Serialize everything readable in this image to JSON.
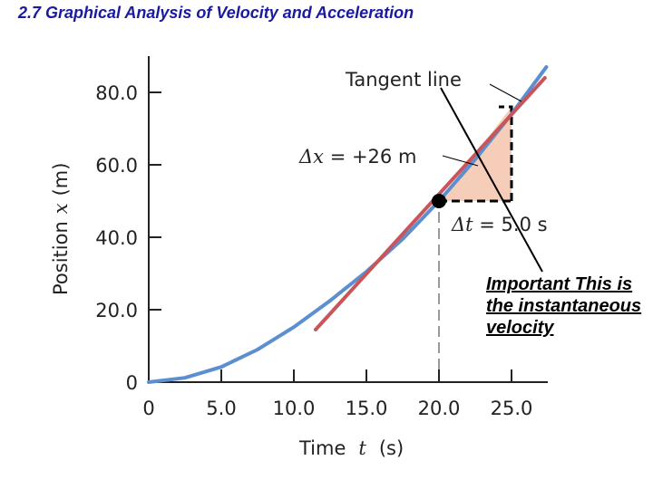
{
  "slide": {
    "title": "2.7 Graphical Analysis of Velocity and Acceleration",
    "title_color": "#1a1aa0",
    "note": "Important This is the instantaneous velocity"
  },
  "chart_data": {
    "type": "line",
    "x_ticks": [
      0,
      5,
      10,
      15,
      20,
      25
    ],
    "x_tick_labels": [
      "0",
      "5.0",
      "10.0",
      "15.0",
      "20.0",
      "25.0"
    ],
    "y_ticks": [
      0,
      20,
      40,
      60,
      80
    ],
    "y_tick_labels": [
      "0",
      "20.0",
      "40.0",
      "60.0",
      "80.0"
    ],
    "xlim": [
      0,
      27.5
    ],
    "ylim": [
      0,
      90
    ],
    "xlabel_prefix": "Time",
    "xlabel_var": "t",
    "xlabel_unit": "(s)",
    "ylabel_prefix": "Position",
    "ylabel_var": "x",
    "ylabel_unit": "(m)",
    "series": [
      {
        "color": "#5b8fd0",
        "x": [
          0,
          2.5,
          5,
          7.5,
          10,
          12.5,
          15,
          17.5,
          20,
          22.5,
          25,
          27.4
        ],
        "y": [
          0,
          1.2,
          4.2,
          9,
          15.2,
          22.5,
          30.5,
          39.5,
          50,
          61.5,
          74,
          87
        ]
      }
    ],
    "tangent": {
      "color": "#c9555a",
      "x": [
        11.5,
        27.3
      ],
      "y": [
        14.5,
        84
      ]
    },
    "point": {
      "x": 20,
      "y": 50
    },
    "triangle": {
      "x0": 20,
      "x1": 25,
      "y0": 50,
      "y1": 76,
      "fill": "#f6cdb9"
    },
    "annotations": {
      "tangent_label": "Tangent line",
      "dx_symbol": "Δx",
      "dx_value": " = +26 m",
      "dt_symbol": "Δt",
      "dt_value": " = 5.0 s"
    }
  }
}
